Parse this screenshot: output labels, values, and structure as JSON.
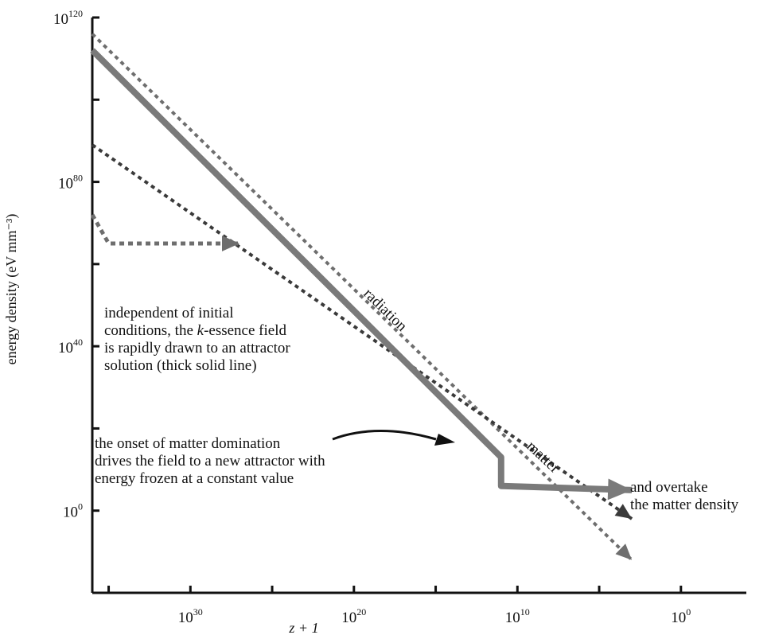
{
  "chart_data": {
    "type": "line",
    "xlabel": "z + 1",
    "ylabel": "energy density (eV mm⁻³)",
    "x_scale": "log",
    "y_scale": "log",
    "x_reversed": true,
    "xlim": [
      1e+36,
      0.0001
    ],
    "ylim": [
      1e-20,
      1e+120
    ],
    "grid": false,
    "x_ticks": [
      {
        "value": 1e+30,
        "base": "10",
        "exp": "30"
      },
      {
        "value": 1e+20,
        "base": "10",
        "exp": "20"
      },
      {
        "value": 10000000000.0,
        "base": "10",
        "exp": "10"
      },
      {
        "value": 1,
        "base": "10",
        "exp": "0"
      }
    ],
    "y_ticks": [
      {
        "value": 1e+120,
        "base": "10",
        "exp": "120"
      },
      {
        "value": 1e+80,
        "base": "10",
        "exp": "80"
      },
      {
        "value": 1e+40,
        "base": "10",
        "exp": "40"
      },
      {
        "value": 1,
        "base": "10",
        "exp": "0"
      }
    ],
    "series": [
      {
        "name": "radiation",
        "style": "dashed",
        "color": "#6e6e6e",
        "points": [
          [
            1e+36,
            1e+116
          ],
          [
            1000.0,
            1e-12
          ]
        ]
      },
      {
        "name": "matter",
        "style": "dashed",
        "color": "#3a3a3a",
        "points": [
          [
            1e+36,
            1e+89
          ],
          [
            1000.0,
            0.01
          ]
        ]
      },
      {
        "name": "",
        "style": "solid-thick",
        "color": "#7a7a7a",
        "points": [
          [
            1e+36,
            1e+112
          ],
          [
            100000000000.0,
            10000000000000.0
          ],
          [
            100000000000.0,
            1000000.0
          ],
          [
            1000.0,
            100000.0
          ]
        ]
      },
      {
        "name": "",
        "style": "dashed-thick",
        "color": "#6e6e6e",
        "points": [
          [
            1e+36,
            1e+72
          ],
          [
            1e+35,
            1e+65
          ],
          [
            1e+32,
            1e+65
          ],
          [
            1e+27,
            1e+65
          ]
        ]
      }
    ],
    "annotations": [
      {
        "id": "independent",
        "lines": [
          [
            "independent of initial"
          ],
          [
            "conditions, the ",
            "k",
            "-essence field"
          ],
          [
            "is rapidly drawn to an attractor"
          ],
          [
            "solution (thick solid line)"
          ]
        ]
      },
      {
        "id": "onset",
        "lines": [
          [
            "the onset of matter domination"
          ],
          [
            "drives the field to a new attractor with"
          ],
          [
            "energy frozen at a constant value"
          ]
        ]
      },
      {
        "id": "overtake",
        "lines": [
          [
            "and overtake"
          ],
          [
            "the matter density"
          ]
        ]
      }
    ],
    "curve_labels": {
      "radiation": "radiation",
      "matter": "matter"
    },
    "colors": {
      "axis": "#111111",
      "radiation": "#6e6e6e",
      "matter": "#3a3a3a",
      "attractor": "#7a7a7a"
    }
  }
}
